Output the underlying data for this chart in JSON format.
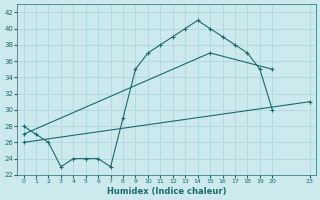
{
  "xlabel": "Humidex (Indice chaleur)",
  "bg_color": "#cce9ed",
  "grid_color": "#aad4d9",
  "line_color": "#1a6b6b",
  "xlim": [
    -0.5,
    23.5
  ],
  "ylim": [
    22,
    43
  ],
  "yticks": [
    22,
    24,
    26,
    28,
    30,
    32,
    34,
    36,
    38,
    40,
    42
  ],
  "xticks": [
    0,
    1,
    2,
    3,
    4,
    5,
    6,
    7,
    8,
    9,
    10,
    11,
    12,
    13,
    14,
    15,
    16,
    17,
    18,
    19,
    20,
    23
  ],
  "line1_x": [
    0,
    1,
    2,
    3,
    4,
    5,
    6,
    7,
    8,
    9,
    10,
    11,
    12,
    13,
    14,
    15,
    16,
    17,
    18,
    19,
    20
  ],
  "line1_y": [
    28,
    27,
    26,
    23,
    24,
    24,
    24,
    23,
    29,
    35,
    37,
    38,
    39,
    40,
    41,
    40,
    39,
    38,
    37,
    35,
    30
  ],
  "line2_x": [
    0,
    15,
    20
  ],
  "line2_y": [
    27,
    37,
    35
  ],
  "line3_x": [
    0,
    23
  ],
  "line3_y": [
    26,
    31
  ]
}
